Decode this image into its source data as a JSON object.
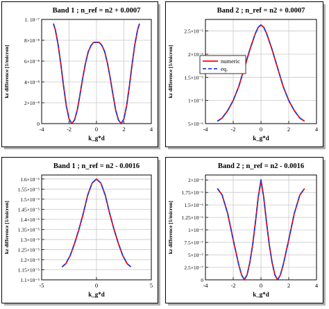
{
  "chart_data": [
    {
      "type": "line",
      "title": "Band 1 ; n_ref = n2 + 0.0007",
      "xlabel": "k_g*d",
      "ylabel": "kz difference [1/micron]",
      "xlim": [
        -4,
        4
      ],
      "ylim": [
        0,
        1e-07
      ],
      "x_ticks": [
        "-4",
        "-2",
        "0",
        "2",
        "4"
      ],
      "y_ticks": [
        "0",
        "2×10⁻⁸",
        "4×10⁻⁸",
        "6×10⁻⁸",
        "8×10⁻⁸",
        "1. 10⁻⁷"
      ],
      "grid": true,
      "series": [
        {
          "name": "numeric",
          "color": "#ff0000",
          "dash": "solid",
          "x": [
            -3.14,
            -3.0,
            -2.8,
            -2.6,
            -2.4,
            -2.2,
            -2.0,
            -1.8,
            -1.6,
            -1.4,
            -1.2,
            -1.0,
            -0.8,
            -0.6,
            -0.4,
            -0.2,
            0.0,
            0.2,
            0.4,
            0.6,
            0.8,
            1.0,
            1.2,
            1.4,
            1.6,
            1.8,
            2.0,
            2.2,
            2.4,
            2.6,
            2.8,
            3.0,
            3.14
          ],
          "y": [
            9.6e-08,
            9e-08,
            7.6e-08,
            5.7e-08,
            3.6e-08,
            1.7e-08,
            4.5e-09,
            0.0,
            3.5e-09,
            1.3e-08,
            2.8e-08,
            4.4e-08,
            5.8e-08,
            6.9e-08,
            7.5e-08,
            7.8e-08,
            7.8e-08,
            7.8e-08,
            7.5e-08,
            6.9e-08,
            5.8e-08,
            4.4e-08,
            2.8e-08,
            1.3e-08,
            3.5e-09,
            0.0,
            4.5e-09,
            1.7e-08,
            3.6e-08,
            5.7e-08,
            7.6e-08,
            9e-08,
            9.6e-08
          ]
        },
        {
          "name": "eq.",
          "color": "#1a3fd6",
          "dash": "dashed",
          "same_as": 0
        }
      ]
    },
    {
      "type": "line",
      "title": "Band 2 ; n_ref = n2 + 0.0007",
      "xlabel": "k_g*d",
      "ylabel": "kz difference [1/micron]",
      "xlim": [
        -4,
        4
      ],
      "ylim": [
        5e-06,
        2.75e-05
      ],
      "x_ticks": [
        "-4",
        "-2",
        "0",
        "2",
        "4"
      ],
      "y_ticks": [
        "5×10⁻⁶",
        "1×10⁻⁵",
        "1.5×10⁻⁵",
        "2×10⁻⁵",
        "2.5×10⁻⁵"
      ],
      "grid": true,
      "legend": {
        "entries": [
          "numeric",
          "eq."
        ],
        "position": "left"
      },
      "series": [
        {
          "name": "numeric",
          "color": "#ff0000",
          "dash": "solid",
          "x": [
            -3.14,
            -2.8,
            -2.4,
            -2.0,
            -1.6,
            -1.2,
            -0.8,
            -0.4,
            -0.2,
            0.0,
            0.2,
            0.4,
            0.8,
            1.2,
            1.6,
            2.0,
            2.4,
            2.8,
            3.14
          ],
          "y": [
            5.5e-06,
            6.2e-06,
            7.8e-06,
            1e-05,
            1.3e-05,
            1.7e-05,
            2.1e-05,
            2.45e-05,
            2.58e-05,
            2.63e-05,
            2.58e-05,
            2.45e-05,
            2.1e-05,
            1.7e-05,
            1.3e-05,
            1e-05,
            7.8e-06,
            6.2e-06,
            5.5e-06
          ]
        },
        {
          "name": "eq.",
          "color": "#1a3fd6",
          "dash": "dashed",
          "same_as": 0
        }
      ]
    },
    {
      "type": "line",
      "title": "Band 1 ; n_ref = n2 - 0.0016",
      "xlabel": "k_g*d",
      "ylabel": "kz difference [1/micron]",
      "xlim": [
        -5,
        5
      ],
      "ylim": [
        1.1e-05,
        1.62e-05
      ],
      "x_ticks": [
        "-5",
        "0",
        "5"
      ],
      "y_ticks": [
        "1.1×10⁻⁵",
        "1.15×10⁻⁵",
        "1.2×10⁻⁵",
        "1.25×10⁻⁵",
        "1.3×10⁻⁵",
        "1.35×10⁻⁵",
        "1.4×10⁻⁵",
        "1.45×10⁻⁵",
        "1.5×10⁻⁵",
        "1.55×10⁻⁵",
        "1.6×10⁻⁵"
      ],
      "grid": true,
      "series": [
        {
          "name": "numeric",
          "color": "#ff0000",
          "dash": "solid",
          "x": [
            -3.14,
            -2.8,
            -2.4,
            -2.0,
            -1.6,
            -1.2,
            -0.8,
            -0.4,
            0.0,
            0.4,
            0.8,
            1.2,
            1.6,
            2.0,
            2.4,
            2.8,
            3.14
          ],
          "y": [
            1.164e-05,
            1.18e-05,
            1.22e-05,
            1.28e-05,
            1.35e-05,
            1.43e-05,
            1.52e-05,
            1.58e-05,
            1.6e-05,
            1.58e-05,
            1.52e-05,
            1.43e-05,
            1.35e-05,
            1.28e-05,
            1.22e-05,
            1.18e-05,
            1.164e-05
          ]
        },
        {
          "name": "eq.",
          "color": "#1a3fd6",
          "dash": "dashed",
          "same_as": 0
        }
      ]
    },
    {
      "type": "line",
      "title": "Band 2 ; n_ref = n2 - 0.0016",
      "xlabel": "k_g*d",
      "ylabel": "kz difference [1/micron]",
      "xlim": [
        -4,
        4
      ],
      "ylim": [
        0,
        2.1e-06
      ],
      "x_ticks": [
        "-4",
        "-2",
        "0",
        "2",
        "4"
      ],
      "y_ticks": [
        "0",
        "2.5×10⁻⁷",
        "5×10⁻⁷",
        "7.5×10⁻⁷",
        "1×10⁻⁶",
        "1.25×10⁻⁶",
        "1.5×10⁻⁶",
        "1.75×10⁻⁶",
        "2×10⁻⁶"
      ],
      "grid": true,
      "series": [
        {
          "name": "numeric",
          "color": "#ff0000",
          "dash": "solid",
          "x": [
            -3.14,
            -2.8,
            -2.4,
            -2.0,
            -1.6,
            -1.4,
            -1.2,
            -1.0,
            -0.8,
            -0.6,
            -0.4,
            -0.2,
            0.0,
            0.2,
            0.4,
            0.6,
            0.8,
            1.0,
            1.2,
            1.4,
            1.6,
            2.0,
            2.4,
            2.8,
            3.14
          ],
          "y": [
            1.83e-06,
            1.7e-06,
            1.33e-06,
            8e-07,
            3e-07,
            1e-07,
            0.0,
            1e-07,
            3.5e-07,
            7e-07,
            1.15e-06,
            1.65e-06,
            2e-06,
            1.65e-06,
            1.15e-06,
            7e-07,
            3.5e-07,
            1e-07,
            0.0,
            1e-07,
            3e-07,
            8e-07,
            1.33e-06,
            1.7e-06,
            1.83e-06
          ]
        },
        {
          "name": "eq.",
          "color": "#1a3fd6",
          "dash": "dashed",
          "same_as": 0
        }
      ]
    }
  ]
}
